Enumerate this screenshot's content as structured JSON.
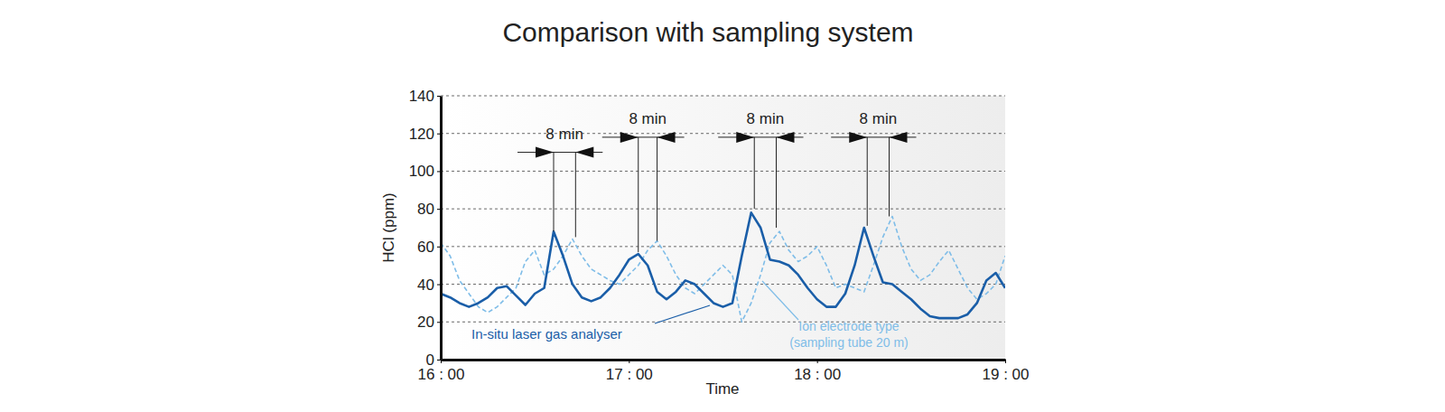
{
  "chart_data": {
    "type": "line",
    "title": "Comparison with sampling system",
    "x_label": "Time",
    "y_label": "HCl (ppm)",
    "x": [
      0,
      3,
      6,
      9,
      12,
      15,
      18,
      21,
      24,
      27,
      30,
      33,
      36,
      39,
      42,
      45,
      48,
      51,
      54,
      57,
      60,
      63,
      66,
      69,
      72,
      75,
      78,
      81,
      84,
      87,
      90,
      93,
      96,
      99,
      102,
      105,
      108,
      111,
      114,
      117,
      120,
      123,
      126,
      129,
      132,
      135,
      138,
      141,
      144,
      147,
      150,
      153,
      156,
      159,
      162,
      165,
      168,
      171,
      174,
      177,
      180
    ],
    "xlim": [
      0,
      180
    ],
    "xticks": [
      {
        "value": 0,
        "label": "16 : 00"
      },
      {
        "value": 60,
        "label": "17 : 00"
      },
      {
        "value": 120,
        "label": "18 : 00"
      },
      {
        "value": 180,
        "label": "19 : 00"
      }
    ],
    "ylim": [
      0,
      140
    ],
    "yticks": [
      0,
      20,
      40,
      60,
      80,
      100,
      120,
      140
    ],
    "grid": true,
    "series": [
      {
        "name": "In-situ laser gas analyser",
        "color": "#1a5ea8",
        "line_style": "solid",
        "values": [
          35,
          33,
          30,
          28,
          30,
          33,
          38,
          39,
          34,
          29,
          35,
          38,
          68,
          55,
          40,
          33,
          31,
          33,
          38,
          45,
          53,
          56,
          50,
          36,
          32,
          36,
          42,
          40,
          35,
          30,
          28,
          30,
          55,
          78,
          70,
          53,
          52,
          50,
          45,
          38,
          32,
          28,
          28,
          35,
          50,
          70,
          55,
          41,
          40,
          36,
          32,
          27,
          23,
          22,
          22,
          22,
          24,
          30,
          42,
          46,
          38
        ]
      },
      {
        "name": "Ion electrode type",
        "subname": "(sampling tube 20 m)",
        "color": "#7fbde8",
        "line_style": "dashed",
        "values": [
          62,
          55,
          42,
          35,
          28,
          25,
          28,
          33,
          38,
          52,
          58,
          45,
          48,
          55,
          64,
          55,
          48,
          45,
          42,
          40,
          45,
          50,
          58,
          63,
          55,
          45,
          38,
          35,
          40,
          45,
          50,
          45,
          20,
          30,
          45,
          62,
          68,
          58,
          52,
          55,
          60,
          50,
          38,
          40,
          38,
          36,
          50,
          65,
          76,
          60,
          48,
          42,
          45,
          52,
          58,
          48,
          38,
          32,
          35,
          40,
          55
        ]
      }
    ],
    "annotations": [
      {
        "text": "8 min",
        "x": [
          36,
          43
        ],
        "y": 110,
        "ends": [
          68,
          65
        ]
      },
      {
        "text": "8 min",
        "x": [
          63,
          69
        ],
        "y": 118,
        "ends": [
          57,
          63
        ]
      },
      {
        "text": "8 min",
        "x": [
          100,
          107
        ],
        "y": 118,
        "ends": [
          80,
          70
        ]
      },
      {
        "text": "8 min",
        "x": [
          136,
          143
        ],
        "y": 118,
        "ends": [
          71,
          76
        ]
      }
    ]
  }
}
